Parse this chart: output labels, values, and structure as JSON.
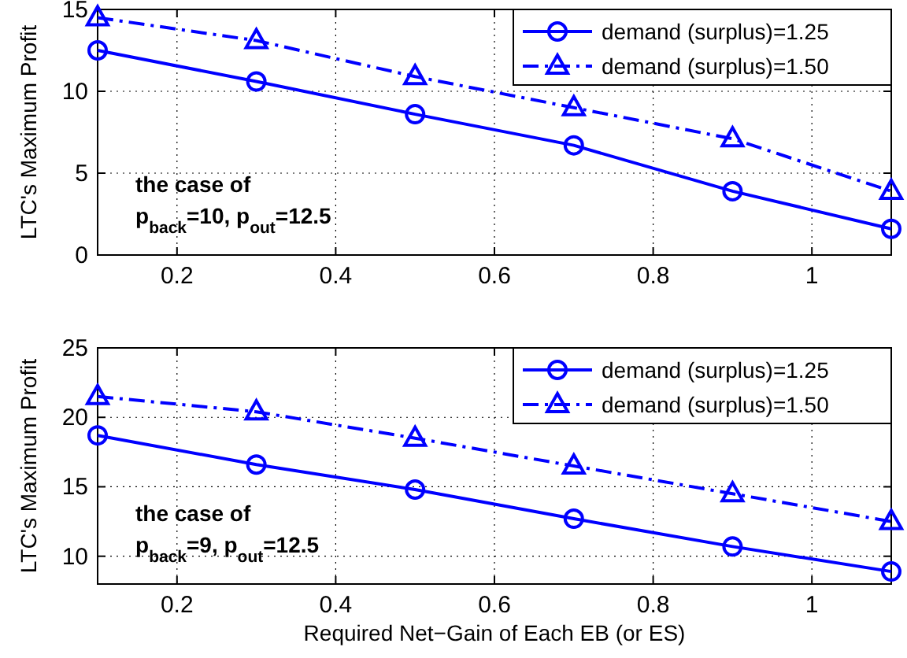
{
  "chart_data": [
    {
      "type": "line",
      "ylabel": "LTC's Maximum Profit",
      "x": [
        0.1,
        0.3,
        0.5,
        0.7,
        0.9,
        1.1
      ],
      "xlim": [
        0.1,
        1.1
      ],
      "xticks": [
        0.2,
        0.4,
        0.6,
        0.8,
        1
      ],
      "ylim": [
        0,
        15
      ],
      "yticks": [
        0,
        5,
        10,
        15
      ],
      "grid": true,
      "legend": "top right",
      "annotations": [
        "the case of\np$_{back}$=10, p$_{out}$=12.5"
      ],
      "series": [
        {
          "name": "demand (surplus)=1.25",
          "color": "#0000ff",
          "marker": "circle",
          "line_style": "solid",
          "values": [
            12.5,
            10.6,
            8.6,
            6.7,
            3.9,
            1.6
          ]
        },
        {
          "name": "demand (surplus)=1.50",
          "color": "#0000ff",
          "marker": "triangle",
          "line_style": "dashed",
          "values": [
            14.5,
            13.1,
            10.9,
            9.0,
            7.1,
            3.9
          ]
        }
      ]
    },
    {
      "type": "line",
      "xlabel": "Required Net−Gain of Each EB (or ES)",
      "ylabel": "LTC's Maximum Profit",
      "x": [
        0.1,
        0.3,
        0.5,
        0.7,
        0.9,
        1.1
      ],
      "xlim": [
        0.1,
        1.1
      ],
      "xticks": [
        0.2,
        0.4,
        0.6,
        0.8,
        1
      ],
      "ylim": [
        8,
        25
      ],
      "yticks": [
        10,
        15,
        20,
        25
      ],
      "grid": true,
      "legend": "top right",
      "annotations": [
        "the case of\np$_{back}$=9, p$_{out}$=12.5"
      ],
      "series": [
        {
          "name": "demand (surplus)=1.25",
          "color": "#0000ff",
          "marker": "circle",
          "line_style": "solid",
          "values": [
            18.7,
            16.6,
            14.8,
            12.7,
            10.7,
            8.9
          ]
        },
        {
          "name": "demand (surplus)=1.50",
          "color": "#0000ff",
          "marker": "triangle",
          "line_style": "dashed",
          "values": [
            21.5,
            20.4,
            18.5,
            16.5,
            14.5,
            12.5
          ]
        }
      ]
    }
  ]
}
